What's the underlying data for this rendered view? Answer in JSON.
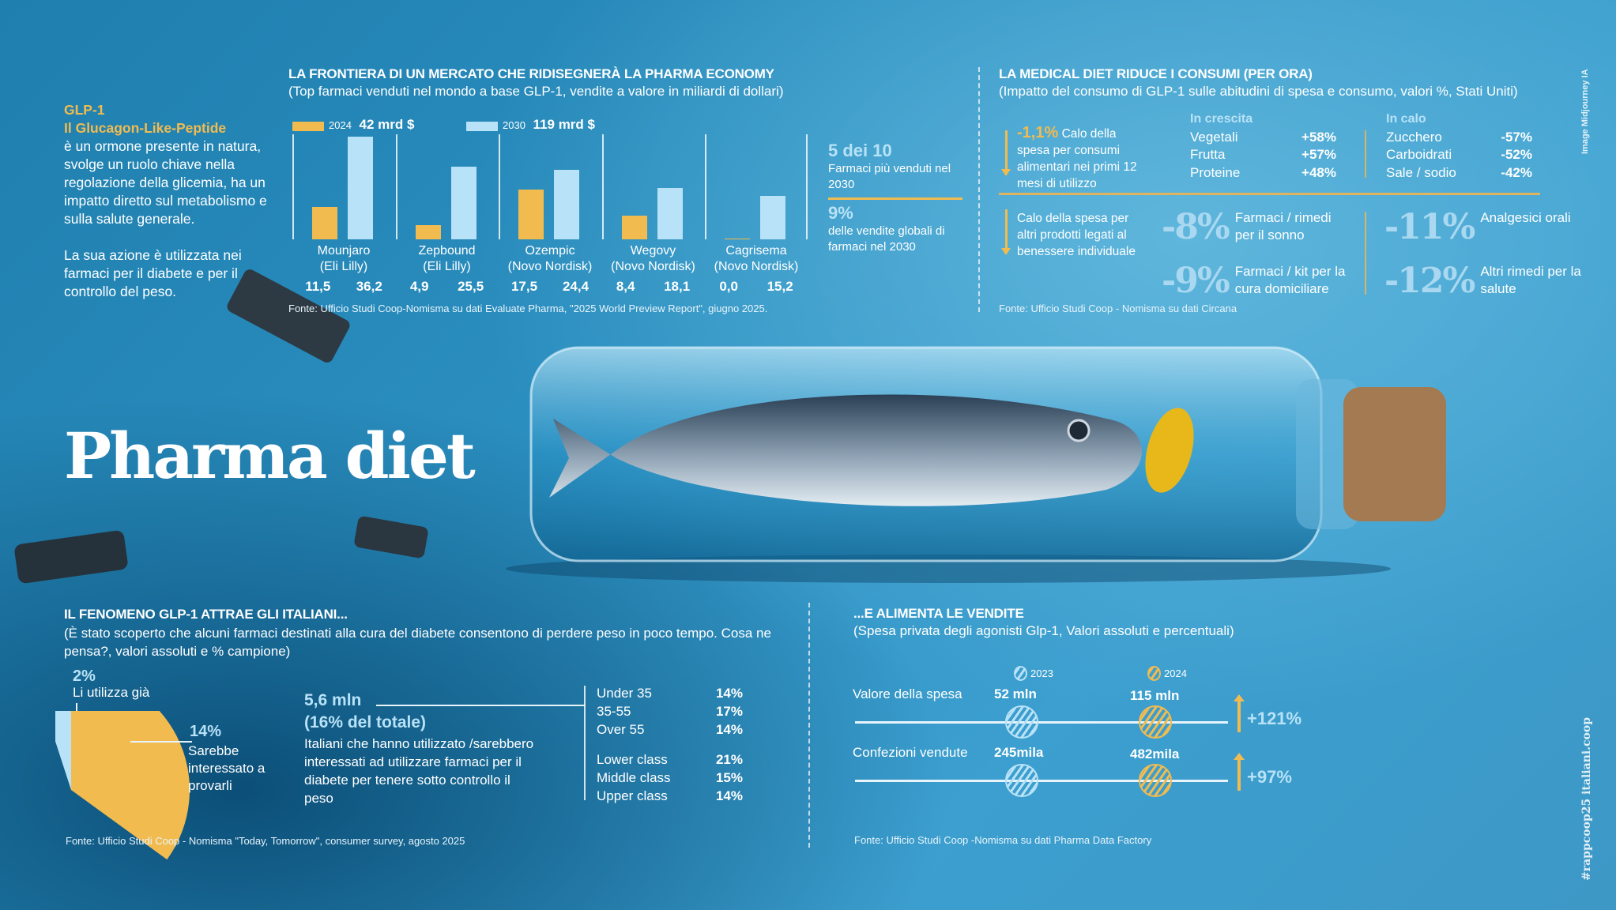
{
  "colors": {
    "y2024": "#f2bb4f",
    "y2030": "#b8e2f7",
    "accent": "#f2bb4f"
  },
  "title": "Pharma diet",
  "credit": "Image Midjourney IA",
  "hashtag": "#rappcoop25 italiani.coop",
  "intro": {
    "heading1": "GLP-1",
    "heading2": "Il Glucagon-Like-Peptide",
    "para1": "è un ormone presente in natura, svolge un ruolo chiave nella regolazione della glicemia, ha un impatto diretto sul metabolismo e sulla salute generale.",
    "para2": "La sua azione è utilizzata nei farmaci per il diabete e per il controllo del peso."
  },
  "market": {
    "title": "LA FRONTIERA DI UN MERCATO CHE RIDISEGNERÀ LA PHARMA ECONOMY",
    "subtitle": "(Top farmaci venduti nel mondo a base GLP-1, vendite a valore in miliardi di dollari)",
    "source": "Fonte: Ufficio Studi Coop-Nomisma su dati Evaluate Pharma, \"2025 World Preview Report\", giugno 2025.",
    "side": {
      "big1": "5 dei 10",
      "text1": "Farmaci più venduti nel 2030",
      "big2": "9%",
      "text2": "delle vendite globali di farmaci nel 2030"
    }
  },
  "chart_data": {
    "type": "bar",
    "title": "LA FRONTIERA DI UN MERCATO CHE RIDISEGNERÀ LA PHARMA ECONOMY",
    "categories": [
      "Mounjaro",
      "Zepbound",
      "Ozempic",
      "Wegovy",
      "Cagrisema"
    ],
    "companies": [
      "(Eli Lilly)",
      "(Eli Lilly)",
      "(Novo Nordisk)",
      "(Novo Nordisk)",
      "(Novo Nordisk)"
    ],
    "series": [
      {
        "name": "2024",
        "total": "42 mrd $",
        "values": [
          11.5,
          4.9,
          17.5,
          8.4,
          0.0
        ],
        "labels": [
          "11,5",
          "4,9",
          "17,5",
          "8,4",
          "0,0"
        ]
      },
      {
        "name": "2030",
        "total": "119 mrd $",
        "values": [
          36.2,
          25.5,
          24.4,
          18.1,
          15.2
        ],
        "labels": [
          "36,2",
          "25,5",
          "24,4",
          "18,1",
          "15,2"
        ]
      }
    ],
    "ylim": [
      0,
      37
    ]
  },
  "medical": {
    "title": "LA MEDICAL DIET RIDUCE I CONSUMI (PER ORA)",
    "subtitle": "(Impatto del consumo di GLP-1  sulle abitudini di spesa e consumo, valori %, Stati Uniti)",
    "food_pct": "-1,1%",
    "food_text": "Calo della spesa per consumi alimentari nei primi 12 mesi di utilizzo",
    "up_title": "In crescita",
    "up": [
      {
        "label": "Vegetali",
        "value": "+58%"
      },
      {
        "label": "Frutta",
        "value": "+57%"
      },
      {
        "label": "Proteine",
        "value": "+48%"
      }
    ],
    "down_title": "In calo",
    "down": [
      {
        "label": "Zucchero",
        "value": "-57%"
      },
      {
        "label": "Carboidrati",
        "value": "-52%"
      },
      {
        "label": "Sale / sodio",
        "value": "-42%"
      }
    ],
    "other_text": "Calo della spesa per altri prodotti legati al benessere individuale",
    "other": [
      {
        "value": "-8%",
        "label": "Farmaci / rimedi per il sonno"
      },
      {
        "value": "-11%",
        "label": "Analgesici orali"
      },
      {
        "value": "-9%",
        "label": "Farmaci / kit per la cura domiciliare"
      },
      {
        "value": "-12%",
        "label": "Altri rimedi per la salute"
      }
    ],
    "source": "Fonte: Ufficio Studi Coop - Nomisma su dati Circana"
  },
  "italians": {
    "title": "IL FENOMENO GLP-1 ATTRAE GLI ITALIANI...",
    "subtitle": "(È stato scoperto che alcuni farmaci destinati alla cura del diabete consentono di perdere peso in poco tempo. Cosa ne pensa?, valori assoluti e % campione)",
    "pie": [
      {
        "pct": 2,
        "value": "2%",
        "label": "Li utilizza già"
      },
      {
        "pct": 14,
        "value": "14%",
        "label": "Sarebbe interessato a provarli"
      }
    ],
    "total": "5,6 mln",
    "total_pct": "(16% del totale)",
    "total_text": "Italiani che hanno utilizzato /sarebbero interessati ad utilizzare farmaci per il diabete per tenere sotto controllo il peso",
    "age": [
      {
        "label": "Under 35",
        "value": "14%"
      },
      {
        "label": "35-55",
        "value": "17%"
      },
      {
        "label": "Over 55",
        "value": "14%"
      }
    ],
    "class": [
      {
        "label": "Lower class",
        "value": "21%"
      },
      {
        "label": "Middle class",
        "value": "15%"
      },
      {
        "label": "Upper class",
        "value": "14%"
      }
    ],
    "source": "Fonte: Ufficio Studi Coop - Nomisma \"Today, Tomorrow\", consumer survey, agosto 2025"
  },
  "sales": {
    "title": "...E ALIMENTA LE VENDITE",
    "subtitle": "(Spesa privata degli agonisti Glp-1, Valori assoluti e percentuali)",
    "legend": [
      "2023",
      "2024"
    ],
    "rows": [
      {
        "label": "Valore della spesa",
        "v2023": "52 mln",
        "v2024": "115 mln",
        "change": "+121%"
      },
      {
        "label": "Confezioni vendute",
        "v2023": "245mila",
        "v2024": "482mila",
        "change": "+97%"
      }
    ],
    "source": "Fonte: Ufficio Studi Coop -Nomisma su dati Pharma Data Factory"
  }
}
